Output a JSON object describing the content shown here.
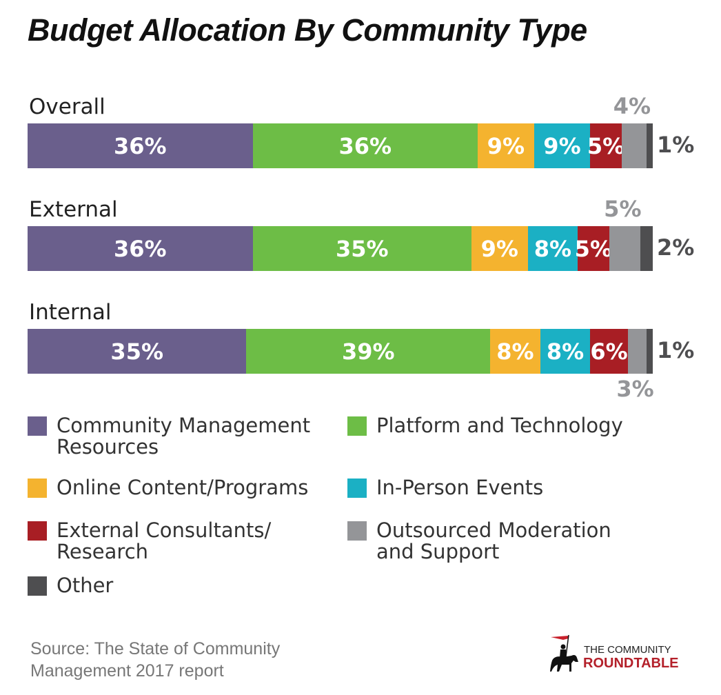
{
  "chart_data": {
    "type": "bar",
    "orientation": "horizontal",
    "stacked": true,
    "title": "Budget Allocation By Community Type",
    "categories": [
      "Overall",
      "External",
      "Internal"
    ],
    "series": [
      {
        "name": "Community Management Resources",
        "color": "#6a5f8c",
        "values": [
          36,
          36,
          35
        ]
      },
      {
        "name": "Platform and Technology",
        "color": "#6dbd46",
        "values": [
          36,
          35,
          39
        ]
      },
      {
        "name": "Online Content/Programs",
        "color": "#f4b32f",
        "values": [
          9,
          9,
          8
        ]
      },
      {
        "name": "In-Person Events",
        "color": "#1bb0c4",
        "values": [
          9,
          8,
          8
        ]
      },
      {
        "name": "External Consultants/ Research",
        "color": "#a81e24",
        "values": [
          5,
          5,
          6
        ]
      },
      {
        "name": "Outsourced Moderation and Support",
        "color": "#949598",
        "values": [
          4,
          5,
          3
        ]
      },
      {
        "name": "Other",
        "color": "#4e4e50",
        "values": [
          1,
          2,
          1
        ]
      }
    ],
    "data_labels": [
      [
        "36%",
        "36%",
        "9%",
        "9%",
        "5%",
        "4%",
        "1%"
      ],
      [
        "36%",
        "35%",
        "9%",
        "8%",
        "5%",
        "5%",
        "2%"
      ],
      [
        "35%",
        "39%",
        "8%",
        "8%",
        "6%",
        "3%",
        "1%"
      ]
    ],
    "xlim": [
      0,
      100
    ],
    "grid": false,
    "legend_placement": "bottom",
    "source": "Source: The State of Community Management 2017 report"
  },
  "logo": {
    "line1": "THE COMMUNITY",
    "line2": "ROUNDTABLE"
  }
}
